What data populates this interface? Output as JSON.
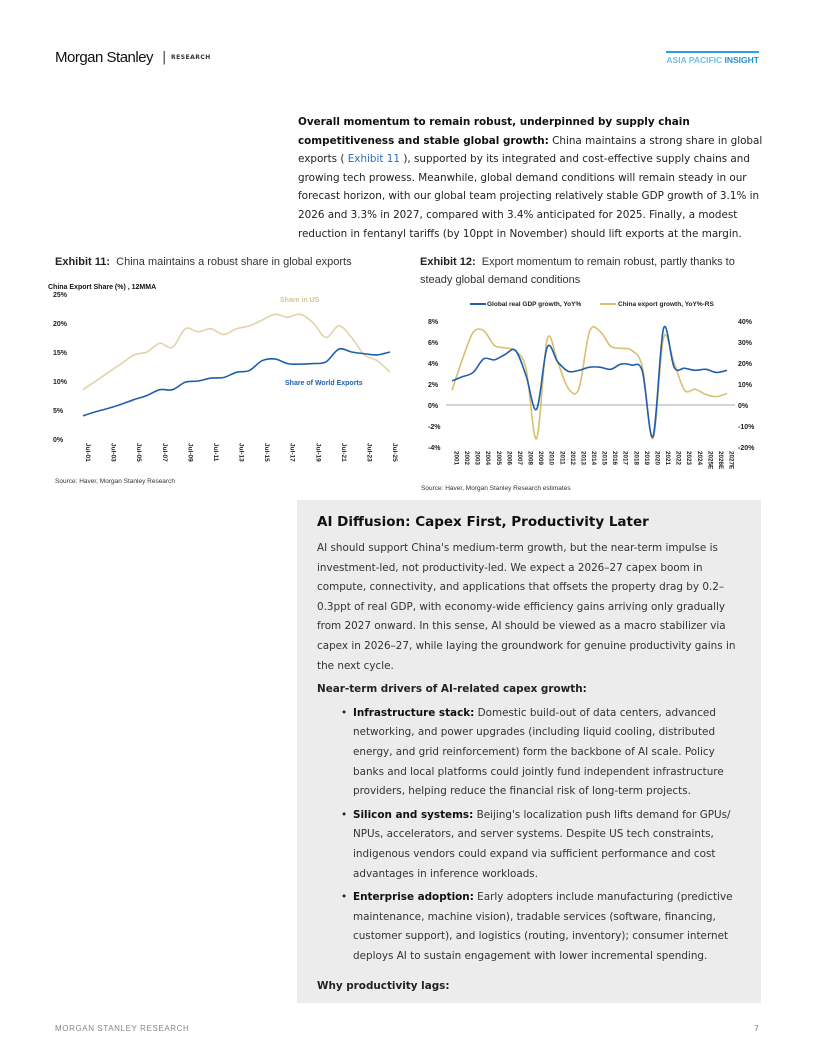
{
  "header": {
    "logo": "Morgan Stanley",
    "separator": "|",
    "research": "RESEARCH",
    "series_light": "ASIA PACIFIC ",
    "series_bold": "INSIGHT"
  },
  "intro": {
    "bold": "Overall momentum to remain robust, underpinned by supply chain competitiveness and stable global growth:",
    "text1": " China maintains a strong share in global exports ( ",
    "link": "Exhibit 11",
    "text2": " ), supported by its integrated and cost-effective supply chains and growing tech prowess. Meanwhile, global demand conditions will remain steady in our forecast horizon, with our global team projecting relatively stable GDP growth of 3.1% in 2026 and 3.3% in 2027, compared with 3.4% anticipated for 2025. Finally, a modest reduction in fentanyl tariffs (by 10ppt in November) should lift exports at the margin."
  },
  "exhibit11": {
    "label": "Exhibit 11:",
    "title": "China maintains a robust share in global exports",
    "source": "Source: Haver, Morgan Stanley Research"
  },
  "exhibit12": {
    "label": "Exhibit 12:",
    "title": "Export momentum to remain robust, partly thanks to steady global demand conditions",
    "source": "Source: Haver, Morgan Stanley Research estimates"
  },
  "chart_data": [
    {
      "type": "line",
      "title": "China Export Share (%) , 12MMA",
      "ylim": [
        0,
        25
      ],
      "yticks": [
        "0%",
        "5%",
        "10%",
        "15%",
        "20%",
        "25%"
      ],
      "grid": false,
      "x": [
        2001,
        2002,
        2003,
        2004,
        2005,
        2006,
        2007,
        2008,
        2009,
        2010,
        2011,
        2012,
        2013,
        2014,
        2015,
        2016,
        2017,
        2018,
        2019,
        2020,
        2021,
        2022,
        2023,
        2024,
        2025
      ],
      "xticks": [
        "Jul-01",
        "Jul-03",
        "Jul-05",
        "Jul-07",
        "Jul-09",
        "Jul-11",
        "Jul-13",
        "Jul-15",
        "Jul-17",
        "Jul-19",
        "Jul-21",
        "Jul-23",
        "Jul-25"
      ],
      "series": [
        {
          "name": "Share in US",
          "color": "#e3d3ac",
          "values": [
            8.5,
            10,
            11.5,
            13,
            14.5,
            15,
            16.5,
            15.8,
            19,
            18.5,
            19,
            18,
            19,
            19.5,
            20.5,
            21.5,
            21,
            21.5,
            20,
            17.5,
            19.5,
            17.5,
            14.5,
            13.5,
            11.5
          ]
        },
        {
          "name": "Share of World Exports",
          "color": "#1f5fae",
          "values": [
            4,
            4.7,
            5.3,
            6,
            6.8,
            7.5,
            8.5,
            8.5,
            9.8,
            10,
            10.5,
            10.6,
            11.5,
            11.8,
            13.5,
            13.8,
            13,
            12.9,
            13,
            13.3,
            15.5,
            15,
            14.7,
            14.5,
            15
          ]
        }
      ]
    },
    {
      "type": "line",
      "ylim": [
        -4,
        8
      ],
      "y2lim": [
        -20,
        40
      ],
      "grid": false,
      "legend": "top",
      "yticks": [
        "-4%",
        "-2%",
        "0%",
        "2%",
        "4%",
        "6%",
        "8%"
      ],
      "y2ticks": [
        "-20%",
        "-10%",
        "0%",
        "10%",
        "20%",
        "30%",
        "40%"
      ],
      "categories": [
        "2001",
        "2002",
        "2003",
        "2004",
        "2005",
        "2006",
        "2007",
        "2008",
        "2009",
        "2010",
        "2011",
        "2012",
        "2013",
        "2014",
        "2015",
        "2016",
        "2017",
        "2018",
        "2019",
        "2020",
        "2021",
        "2022",
        "2023",
        "2024",
        "2025E",
        "2026E",
        "2027E"
      ],
      "series": [
        {
          "name": "Global real GDP growth, YoY%",
          "axis": "left",
          "color": "#1f5fae",
          "values": [
            2.3,
            2.7,
            3.1,
            4.4,
            4.3,
            4.8,
            5.2,
            2.8,
            -0.4,
            5.5,
            4.1,
            3.2,
            3.3,
            3.6,
            3.6,
            3.4,
            3.9,
            3.8,
            3.2,
            -3.0,
            7.3,
            3.6,
            3.5,
            3.3,
            3.4,
            3.1,
            3.3
          ]
        },
        {
          "name": "China export growth, YoY%-RS",
          "axis": "right",
          "color": "#d9bf6e",
          "values": [
            7,
            22,
            34.6,
            35.4,
            28.4,
            27.2,
            25.7,
            17.3,
            -16,
            31.3,
            20.3,
            7.9,
            7.8,
            35,
            35,
            28,
            27,
            26,
            18,
            -16,
            32,
            20,
            7,
            7.5,
            5,
            4,
            5.5
          ]
        }
      ]
    }
  ],
  "box": {
    "title": "AI Diffusion: Capex First, Productivity Later",
    "para": "AI should support China's medium-term growth, but the near-term impulse is investment-led, not productivity-led. We expect a 2026–27 capex boom in compute, connectivity, and applications that offsets the property drag by 0.2–0.3ppt of real GDP, with economy-wide efficiency gains arriving only gradually from 2027 onward. In this sense, AI should be viewed as a macro stabilizer via capex in 2026–27, while laying the groundwork for genuine productivity gains in the next cycle.",
    "subheading": "Near-term drivers of AI-related capex growth:",
    "bullets": [
      {
        "bold": "Infrastructure stack:",
        "text": " Domestic build-out of data centers, advanced networking, and power upgrades (including liquid cooling, distributed energy, and grid reinforcement) form the backbone of AI scale. Policy banks and local platforms could jointly fund independent infrastructure providers, helping reduce the financial risk of long-term projects."
      },
      {
        "bold": "Silicon and systems:",
        "text": " Beijing's localization push lifts demand for GPUs/ NPUs, accelerators, and server systems. Despite US tech constraints, indigenous vendors could expand via sufficient performance and cost advantages in inference workloads."
      },
      {
        "bold": "Enterprise adoption:",
        "text": " Early adopters include manufacturing (predictive maintenance, machine vision), tradable services (software, financing, customer support), and logistics (routing, inventory); consumer internet deploys AI to sustain engagement with lower incremental spending."
      }
    ],
    "why": "Why productivity lags:"
  },
  "footer": {
    "left": "MORGAN STANLEY RESEARCH",
    "page": "7"
  }
}
